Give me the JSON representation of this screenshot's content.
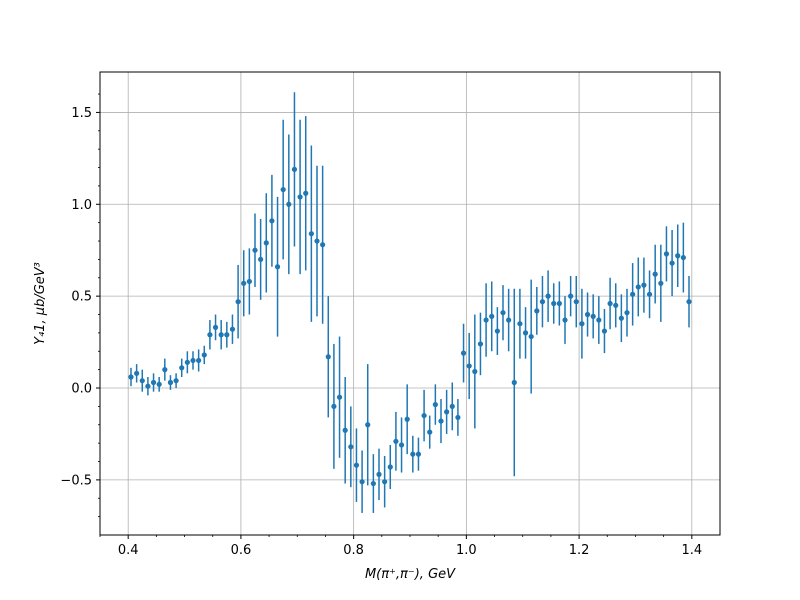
{
  "chart_data": {
    "type": "scatter",
    "title": "",
    "xlabel": "M(π⁺,π⁻), GeV",
    "ylabel": "Y₄1, μb/GeV³",
    "xlim": [
      0.35,
      1.45
    ],
    "ylim": [
      -0.8,
      1.72
    ],
    "xticks": [
      "0.4",
      "0.6",
      "0.8",
      "1.0",
      "1.2",
      "1.4"
    ],
    "xtick_values": [
      0.4,
      0.6,
      0.8,
      1.0,
      1.2,
      1.4
    ],
    "yticks": [
      "−0.5",
      "0.0",
      "0.5",
      "1.0",
      "1.5"
    ],
    "ytick_values": [
      -0.5,
      0.0,
      0.5,
      1.0,
      1.5
    ],
    "grid": true,
    "color": "#1f77b4",
    "error_bars": true,
    "points": [
      [
        0.405,
        0.06,
        0.05
      ],
      [
        0.415,
        0.08,
        0.05
      ],
      [
        0.425,
        0.04,
        0.06
      ],
      [
        0.435,
        0.01,
        0.05
      ],
      [
        0.445,
        0.03,
        0.05
      ],
      [
        0.455,
        0.02,
        0.04
      ],
      [
        0.465,
        0.1,
        0.06
      ],
      [
        0.475,
        0.03,
        0.04
      ],
      [
        0.485,
        0.04,
        0.04
      ],
      [
        0.495,
        0.11,
        0.05
      ],
      [
        0.505,
        0.14,
        0.06
      ],
      [
        0.515,
        0.15,
        0.05
      ],
      [
        0.525,
        0.15,
        0.06
      ],
      [
        0.535,
        0.18,
        0.05
      ],
      [
        0.545,
        0.29,
        0.08
      ],
      [
        0.555,
        0.33,
        0.07
      ],
      [
        0.565,
        0.29,
        0.08
      ],
      [
        0.575,
        0.29,
        0.07
      ],
      [
        0.585,
        0.32,
        0.08
      ],
      [
        0.595,
        0.47,
        0.2
      ],
      [
        0.605,
        0.57,
        0.18
      ],
      [
        0.615,
        0.58,
        0.18
      ],
      [
        0.625,
        0.75,
        0.2
      ],
      [
        0.635,
        0.7,
        0.22
      ],
      [
        0.645,
        0.79,
        0.27
      ],
      [
        0.655,
        0.91,
        0.25
      ],
      [
        0.665,
        0.66,
        0.38
      ],
      [
        0.675,
        1.08,
        0.38
      ],
      [
        0.685,
        1.0,
        0.38
      ],
      [
        0.695,
        1.19,
        0.42
      ],
      [
        0.705,
        1.04,
        0.42
      ],
      [
        0.715,
        1.06,
        0.42
      ],
      [
        0.725,
        0.84,
        0.48
      ],
      [
        0.735,
        0.8,
        0.41
      ],
      [
        0.745,
        0.78,
        0.43
      ],
      [
        0.755,
        0.17,
        0.33
      ],
      [
        0.765,
        -0.1,
        0.34
      ],
      [
        0.775,
        -0.05,
        0.33
      ],
      [
        0.785,
        -0.23,
        0.29
      ],
      [
        0.795,
        -0.32,
        0.22
      ],
      [
        0.805,
        -0.42,
        0.2
      ],
      [
        0.815,
        -0.51,
        0.17
      ],
      [
        0.825,
        -0.2,
        0.33
      ],
      [
        0.835,
        -0.52,
        0.16
      ],
      [
        0.845,
        -0.47,
        0.14
      ],
      [
        0.855,
        -0.51,
        0.14
      ],
      [
        0.865,
        -0.43,
        0.12
      ],
      [
        0.875,
        -0.29,
        0.16
      ],
      [
        0.885,
        -0.31,
        0.15
      ],
      [
        0.895,
        -0.17,
        0.19
      ],
      [
        0.905,
        -0.36,
        0.1
      ],
      [
        0.915,
        -0.36,
        0.09
      ],
      [
        0.925,
        -0.15,
        0.14
      ],
      [
        0.935,
        -0.24,
        0.09
      ],
      [
        0.945,
        -0.09,
        0.11
      ],
      [
        0.955,
        -0.18,
        0.12
      ],
      [
        0.965,
        -0.13,
        0.12
      ],
      [
        0.975,
        -0.1,
        0.13
      ],
      [
        0.985,
        -0.16,
        0.1
      ],
      [
        0.995,
        0.19,
        0.16
      ],
      [
        1.005,
        0.12,
        0.18
      ],
      [
        1.015,
        0.09,
        0.31
      ],
      [
        1.025,
        0.24,
        0.17
      ],
      [
        1.035,
        0.37,
        0.2
      ],
      [
        1.045,
        0.39,
        0.19
      ],
      [
        1.055,
        0.31,
        0.13
      ],
      [
        1.065,
        0.41,
        0.15
      ],
      [
        1.075,
        0.37,
        0.17
      ],
      [
        1.085,
        0.03,
        0.51
      ],
      [
        1.095,
        0.35,
        0.19
      ],
      [
        1.105,
        0.3,
        0.14
      ],
      [
        1.115,
        0.28,
        0.31
      ],
      [
        1.125,
        0.42,
        0.13
      ],
      [
        1.135,
        0.47,
        0.14
      ],
      [
        1.145,
        0.5,
        0.14
      ],
      [
        1.155,
        0.46,
        0.11
      ],
      [
        1.165,
        0.46,
        0.12
      ],
      [
        1.175,
        0.37,
        0.13
      ],
      [
        1.185,
        0.5,
        0.11
      ],
      [
        1.195,
        0.47,
        0.14
      ],
      [
        1.205,
        0.35,
        0.19
      ],
      [
        1.215,
        0.4,
        0.12
      ],
      [
        1.225,
        0.39,
        0.12
      ],
      [
        1.235,
        0.37,
        0.13
      ],
      [
        1.245,
        0.31,
        0.12
      ],
      [
        1.255,
        0.46,
        0.14
      ],
      [
        1.265,
        0.45,
        0.12
      ],
      [
        1.275,
        0.38,
        0.13
      ],
      [
        1.285,
        0.41,
        0.13
      ],
      [
        1.295,
        0.51,
        0.17
      ],
      [
        1.305,
        0.55,
        0.16
      ],
      [
        1.315,
        0.56,
        0.15
      ],
      [
        1.325,
        0.51,
        0.13
      ],
      [
        1.335,
        0.62,
        0.16
      ],
      [
        1.345,
        0.57,
        0.21
      ],
      [
        1.355,
        0.73,
        0.15
      ],
      [
        1.365,
        0.68,
        0.18
      ],
      [
        1.375,
        0.72,
        0.17
      ],
      [
        1.385,
        0.71,
        0.19
      ],
      [
        1.395,
        0.47,
        0.14
      ]
    ]
  }
}
